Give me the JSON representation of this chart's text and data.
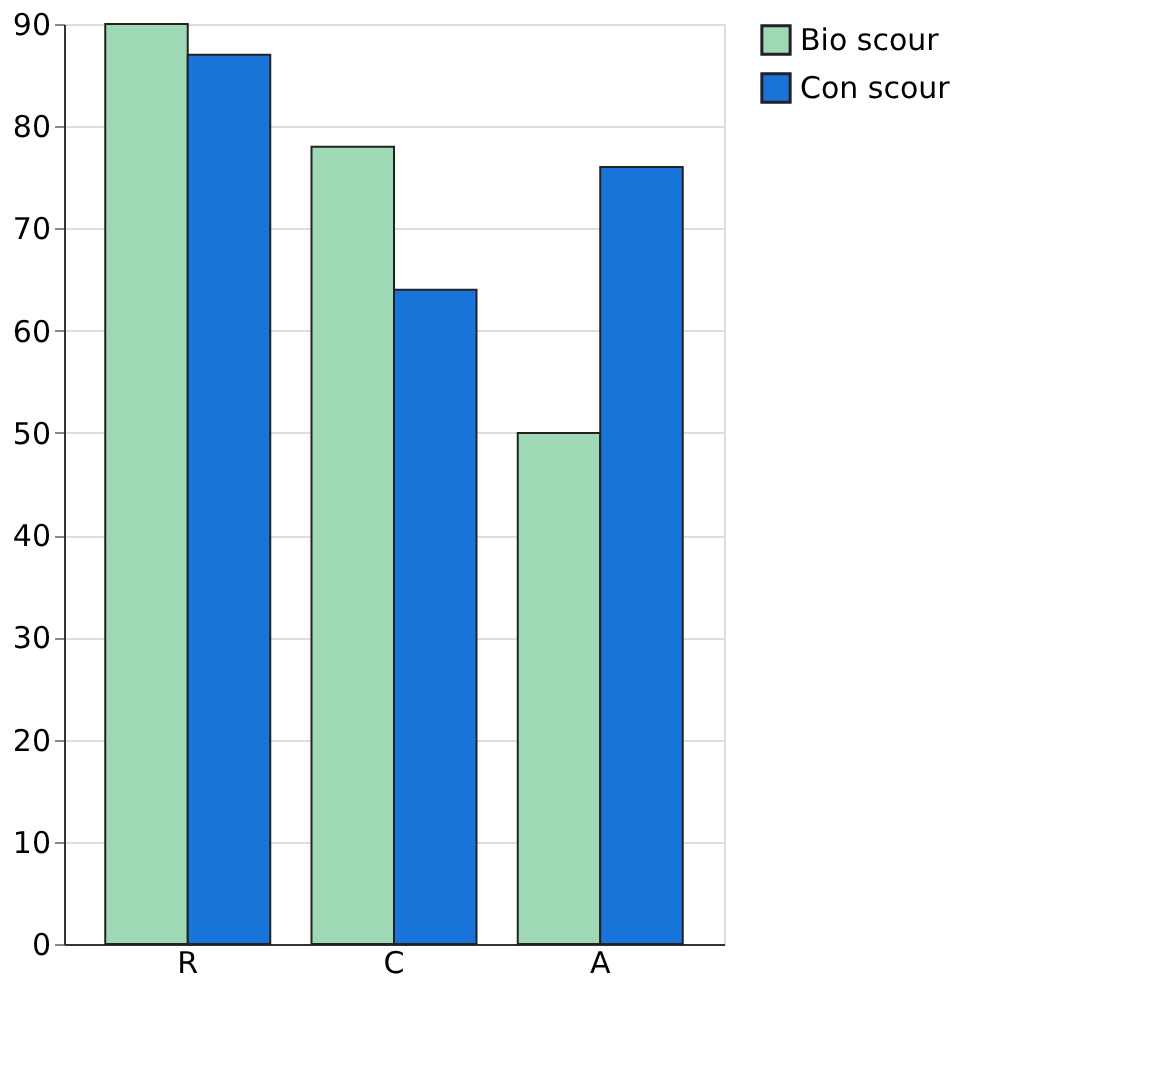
{
  "chart_data": {
    "type": "bar",
    "categories": [
      "R",
      "C",
      "A",
      null
    ],
    "series": [
      {
        "name": "Bio scour",
        "color": "#9fd8b5",
        "values": [
          90,
          78,
          50,
          null
        ]
      },
      {
        "name": "Con scour",
        "color": "#1874d8",
        "values": [
          87,
          64,
          76,
          null
        ]
      }
    ],
    "ylim": [
      0,
      90
    ],
    "yticks": [
      0,
      10,
      20,
      30,
      40,
      50,
      60,
      70,
      80,
      90
    ],
    "grid": "y",
    "legend": "right"
  }
}
